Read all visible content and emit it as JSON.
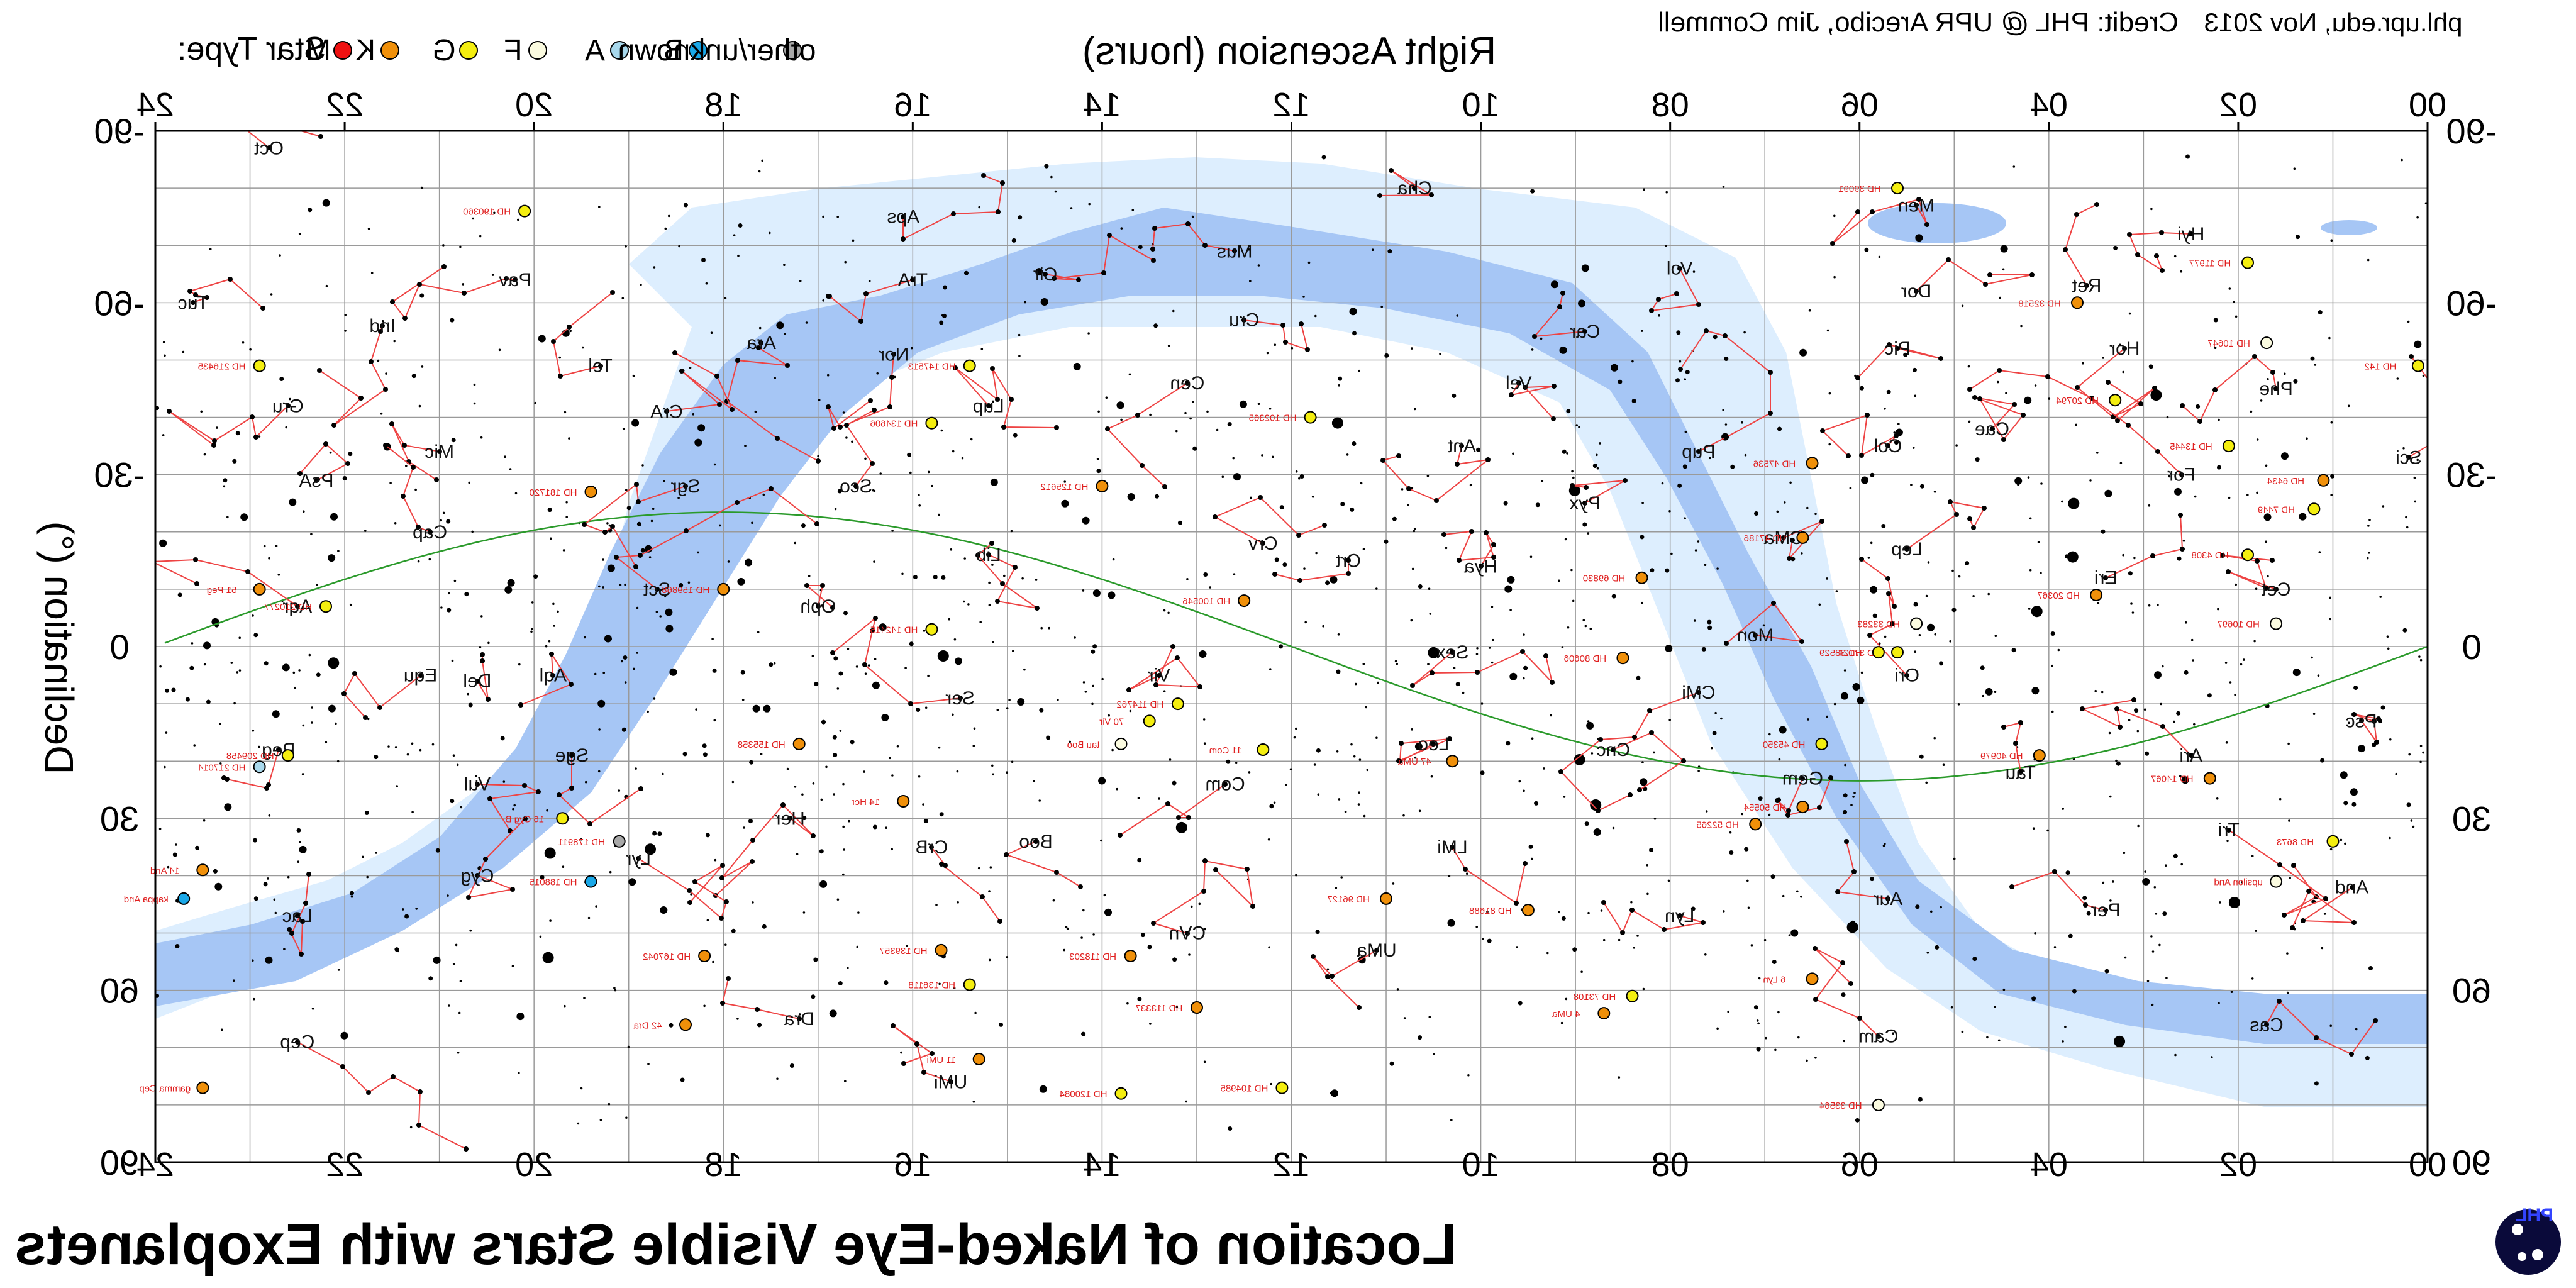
{
  "header": {
    "legend_title": "Star Type:",
    "legend": [
      {
        "label": "M",
        "color": "#ee1111"
      },
      {
        "label": "K",
        "color": "#f0900a"
      },
      {
        "label": "G",
        "color": "#f4ee10"
      },
      {
        "label": "F",
        "color": "#fbfbe0"
      },
      {
        "label": "A",
        "color": "#a8d8ec"
      },
      {
        "label": "B",
        "color": "#1aa8e8"
      },
      {
        "label": "other/unknown",
        "color": "#a8a8a8"
      }
    ],
    "credit": "Credit: PHL @ UPR Arecibo, Jim Cornmell",
    "site_date": "phl.upr.edu, Nov 2013"
  },
  "axes": {
    "top_label": "Right Ascension (hours)",
    "left_label": "Declination (°)",
    "ra_ticks": [
      "24",
      "22",
      "20",
      "18",
      "16",
      "14",
      "12",
      "10",
      "08",
      "06",
      "04",
      "02",
      "00"
    ],
    "dec_ticks": [
      "-90",
      "-60",
      "-30",
      "0",
      "30",
      "60",
      "90"
    ]
  },
  "footer": {
    "title": "Location of Naked-Eye Visible Stars with Exoplanets",
    "logo_text": "PHL"
  },
  "constellations": [
    {
      "name": "Oct",
      "ra": 22.8,
      "dec": -87
    },
    {
      "name": "Aps",
      "ra": 16.1,
      "dec": -75
    },
    {
      "name": "Cha",
      "ra": 10.7,
      "dec": -80
    },
    {
      "name": "Men",
      "ra": 5.4,
      "dec": -77
    },
    {
      "name": "Hyi",
      "ra": 2.5,
      "dec": -72
    },
    {
      "name": "Mus",
      "ra": 12.6,
      "dec": -69
    },
    {
      "name": "Cir",
      "ra": 14.6,
      "dec": -65
    },
    {
      "name": "TrA",
      "ra": 16.0,
      "dec": -64
    },
    {
      "name": "Vol",
      "ra": 7.9,
      "dec": -66
    },
    {
      "name": "Dor",
      "ra": 5.4,
      "dec": -62
    },
    {
      "name": "Ret",
      "ra": 3.6,
      "dec": -63
    },
    {
      "name": "Tuc",
      "ra": 23.6,
      "dec": -60
    },
    {
      "name": "Pav",
      "ra": 20.2,
      "dec": -64
    },
    {
      "name": "Ind",
      "ra": 21.6,
      "dec": -56
    },
    {
      "name": "Ara",
      "ra": 17.6,
      "dec": -53
    },
    {
      "name": "Nor",
      "ra": 16.2,
      "dec": -51
    },
    {
      "name": "Cru",
      "ra": 12.5,
      "dec": -57
    },
    {
      "name": "Car",
      "ra": 8.9,
      "dec": -55
    },
    {
      "name": "Pic",
      "ra": 5.6,
      "dec": -52
    },
    {
      "name": "Hor",
      "ra": 3.2,
      "dec": -52
    },
    {
      "name": "Tel",
      "ra": 19.3,
      "dec": -49
    },
    {
      "name": "Gru",
      "ra": 22.6,
      "dec": -42
    },
    {
      "name": "CrA",
      "ra": 18.6,
      "dec": -41
    },
    {
      "name": "Cen",
      "ra": 13.1,
      "dec": -46
    },
    {
      "name": "Vel",
      "ra": 9.6,
      "dec": -46
    },
    {
      "name": "Phe",
      "ra": 1.6,
      "dec": -45
    },
    {
      "name": "Lup",
      "ra": 15.2,
      "dec": -42
    },
    {
      "name": "Cae",
      "ra": 4.6,
      "dec": -38
    },
    {
      "name": "Mic",
      "ra": 21.0,
      "dec": -34
    },
    {
      "name": "Ant",
      "ra": 10.2,
      "dec": -35
    },
    {
      "name": "Pup",
      "ra": 7.7,
      "dec": -34
    },
    {
      "name": "Col",
      "ra": 5.7,
      "dec": -35
    },
    {
      "name": "Sci",
      "ra": 0.2,
      "dec": -33
    },
    {
      "name": "PsA",
      "ra": 22.3,
      "dec": -29
    },
    {
      "name": "Sgr",
      "ra": 18.4,
      "dec": -28
    },
    {
      "name": "Sco",
      "ra": 16.6,
      "dec": -28
    },
    {
      "name": "For",
      "ra": 2.6,
      "dec": -30
    },
    {
      "name": "Pyx",
      "ra": 8.9,
      "dec": -25
    },
    {
      "name": "Lep",
      "ra": 5.5,
      "dec": -17
    },
    {
      "name": "CMa",
      "ra": 6.8,
      "dec": -19
    },
    {
      "name": "Cap",
      "ra": 21.1,
      "dec": -20
    },
    {
      "name": "Crv",
      "ra": 12.3,
      "dec": -18
    },
    {
      "name": "Lib",
      "ra": 15.2,
      "dec": -16
    },
    {
      "name": "Eri",
      "ra": 3.4,
      "dec": -12
    },
    {
      "name": "Hya",
      "ra": 10.0,
      "dec": -14
    },
    {
      "name": "Crt",
      "ra": 11.4,
      "dec": -15
    },
    {
      "name": "Sct",
      "ra": 18.7,
      "dec": -10
    },
    {
      "name": "Cet",
      "ra": 1.6,
      "dec": -10
    },
    {
      "name": "Aqr",
      "ra": 22.5,
      "dec": -7
    },
    {
      "name": "Oph",
      "ra": 17.0,
      "dec": -7
    },
    {
      "name": "Mon",
      "ra": 7.1,
      "dec": -2
    },
    {
      "name": "Sex",
      "ra": 10.3,
      "dec": 1
    },
    {
      "name": "Psc",
      "ra": 0.7,
      "dec": 13
    },
    {
      "name": "Equ",
      "ra": 21.2,
      "dec": 5
    },
    {
      "name": "Del",
      "ra": 20.6,
      "dec": 6
    },
    {
      "name": "Aql",
      "ra": 19.8,
      "dec": 5
    },
    {
      "name": "Ser",
      "ra": 15.5,
      "dec": 9
    },
    {
      "name": "Vir",
      "ra": 13.4,
      "dec": 5
    },
    {
      "name": "Ori",
      "ra": 5.5,
      "dec": 5
    },
    {
      "name": "CMi",
      "ra": 7.7,
      "dec": 8
    },
    {
      "name": "Leo",
      "ra": 10.5,
      "dec": 17
    },
    {
      "name": "Cnc",
      "ra": 8.6,
      "dec": 18
    },
    {
      "name": "Peg",
      "ra": 22.7,
      "dec": 18
    },
    {
      "name": "Sge",
      "ra": 19.6,
      "dec": 19
    },
    {
      "name": "Ari",
      "ra": 2.5,
      "dec": 19
    },
    {
      "name": "Tau",
      "ra": 4.3,
      "dec": 22
    },
    {
      "name": "Com",
      "ra": 12.7,
      "dec": 24
    },
    {
      "name": "Gem",
      "ra": 6.6,
      "dec": 23
    },
    {
      "name": "Vul",
      "ra": 20.6,
      "dec": 24
    },
    {
      "name": "Her",
      "ra": 17.3,
      "dec": 30
    },
    {
      "name": "Tri",
      "ra": 2.1,
      "dec": 32
    },
    {
      "name": "CrB",
      "ra": 15.8,
      "dec": 35
    },
    {
      "name": "Boo",
      "ra": 14.7,
      "dec": 34
    },
    {
      "name": "LMi",
      "ra": 10.3,
      "dec": 35
    },
    {
      "name": "Lyr",
      "ra": 18.9,
      "dec": 37
    },
    {
      "name": "Cyg",
      "ra": 20.6,
      "dec": 40
    },
    {
      "name": "And",
      "ra": 0.8,
      "dec": 42
    },
    {
      "name": "Aur",
      "ra": 5.7,
      "dec": 44
    },
    {
      "name": "Lac",
      "ra": 22.5,
      "dec": 47
    },
    {
      "name": "Per",
      "ra": 3.4,
      "dec": 46
    },
    {
      "name": "Lyn",
      "ra": 7.9,
      "dec": 47
    },
    {
      "name": "CVn",
      "ra": 13.1,
      "dec": 50
    },
    {
      "name": "UMa",
      "ra": 11.1,
      "dec": 53
    },
    {
      "name": "Cas",
      "ra": 1.7,
      "dec": 66
    },
    {
      "name": "Dra",
      "ra": 17.2,
      "dec": 65
    },
    {
      "name": "Cep",
      "ra": 22.5,
      "dec": 69
    },
    {
      "name": "Cam",
      "ra": 5.8,
      "dec": 68
    },
    {
      "name": "UMi",
      "ra": 15.6,
      "dec": 76
    }
  ],
  "exoplanet_stars": [
    {
      "name": "HD 39091",
      "ra": 5.6,
      "dec": -80,
      "type": "G"
    },
    {
      "name": "HD 190360",
      "ra": 20.1,
      "dec": -76,
      "type": "G"
    },
    {
      "name": "HD 11977",
      "ra": 1.9,
      "dec": -67,
      "type": "G"
    },
    {
      "name": "HD 32518",
      "ra": 3.7,
      "dec": -60,
      "type": "K"
    },
    {
      "name": "HD 216435",
      "ra": 22.9,
      "dec": -49,
      "type": "G"
    },
    {
      "name": "HD 10647",
      "ra": 1.7,
      "dec": -53,
      "type": "F"
    },
    {
      "name": "HD 142",
      "ra": 0.1,
      "dec": -49,
      "type": "G"
    },
    {
      "name": "HD 20794",
      "ra": 3.3,
      "dec": -43,
      "type": "G"
    },
    {
      "name": "HD 147513",
      "ra": 15.4,
      "dec": -49,
      "type": "G"
    },
    {
      "name": "HD 102365",
      "ra": 11.8,
      "dec": -40,
      "type": "G"
    },
    {
      "name": "HD 134606",
      "ra": 15.8,
      "dec": -39,
      "type": "G"
    },
    {
      "name": "HD 47536",
      "ra": 6.5,
      "dec": -32,
      "type": "K"
    },
    {
      "name": "HD 125612",
      "ra": 14.0,
      "dec": -28,
      "type": "K"
    },
    {
      "name": "HD 181720",
      "ra": 19.4,
      "dec": -27,
      "type": "K"
    },
    {
      "name": "HD 13445",
      "ra": 2.1,
      "dec": -35,
      "type": "G"
    },
    {
      "name": "HD 7449",
      "ra": 1.2,
      "dec": -24,
      "type": "G"
    },
    {
      "name": "HD 47186",
      "ra": 6.6,
      "dec": -19,
      "type": "K"
    },
    {
      "name": "HD 69830",
      "ra": 8.3,
      "dec": -12,
      "type": "K"
    },
    {
      "name": "HD 100546",
      "ra": 12.5,
      "dec": -8,
      "type": "K"
    },
    {
      "name": "HD 4308",
      "ra": 1.9,
      "dec": -16,
      "type": "G"
    },
    {
      "name": "51 Peg",
      "ra": 22.9,
      "dec": -10,
      "type": "K"
    },
    {
      "name": "HD 210277",
      "ra": 22.2,
      "dec": -7,
      "type": "G"
    },
    {
      "name": "HD 33283",
      "ra": 5.4,
      "dec": -4,
      "type": "F"
    },
    {
      "name": "HD 20367",
      "ra": 3.5,
      "dec": -9,
      "type": "K"
    },
    {
      "name": "HD 10697",
      "ra": 1.6,
      "dec": -4,
      "type": "F"
    },
    {
      "name": "HD 159868",
      "ra": 18.0,
      "dec": -10,
      "type": "K"
    },
    {
      "name": "HD 142415",
      "ra": 15.8,
      "dec": -3,
      "type": "G"
    },
    {
      "name": "HD 80606",
      "ra": 8.5,
      "dec": 2,
      "type": "K"
    },
    {
      "name": "HD 37124",
      "ra": 5.6,
      "dec": 1,
      "type": "G"
    },
    {
      "name": "70 Vir",
      "ra": 13.5,
      "dec": 13,
      "type": "G"
    },
    {
      "name": "HD 114762",
      "ra": 13.2,
      "dec": 10,
      "type": "G"
    },
    {
      "name": "11 Com",
      "ra": 12.3,
      "dec": 18,
      "type": "G"
    },
    {
      "name": "tau Boo",
      "ra": 13.8,
      "dec": 17,
      "type": "F"
    },
    {
      "name": "14 Her",
      "ra": 16.1,
      "dec": 27,
      "type": "K"
    },
    {
      "name": "HD 155358",
      "ra": 17.2,
      "dec": 17,
      "type": "K"
    },
    {
      "name": "47 UMa",
      "ra": 10.3,
      "dec": 20,
      "type": "K"
    },
    {
      "name": "HD 45350",
      "ra": 6.4,
      "dec": 17,
      "type": "G"
    },
    {
      "name": "upsilon And",
      "ra": 1.6,
      "dec": 41,
      "type": "F"
    },
    {
      "name": "HD 40979",
      "ra": 4.1,
      "dec": 19,
      "type": "K"
    },
    {
      "name": "HD 50554",
      "ra": 6.6,
      "dec": 28,
      "type": "K"
    },
    {
      "name": "HD 52265",
      "ra": 7.1,
      "dec": 31,
      "type": "K"
    },
    {
      "name": "HD 8673",
      "ra": 1.0,
      "dec": 34,
      "type": "G"
    },
    {
      "name": "16 Cyg B",
      "ra": 19.7,
      "dec": 30,
      "type": "G"
    },
    {
      "name": "HD 209458",
      "ra": 22.6,
      "dec": 19,
      "type": "G"
    },
    {
      "name": "HD 217014",
      "ra": 22.9,
      "dec": 21,
      "type": "A"
    },
    {
      "name": "gamma Cep",
      "ra": 23.5,
      "dec": 77,
      "type": "K"
    },
    {
      "name": "HD 178911",
      "ra": 19.1,
      "dec": 34,
      "type": "other"
    },
    {
      "name": "HD 188015",
      "ra": 19.4,
      "dec": 41,
      "type": "B"
    },
    {
      "name": "14 And",
      "ra": 23.5,
      "dec": 39,
      "type": "K"
    },
    {
      "name": "kappa And",
      "ra": 23.7,
      "dec": 44,
      "type": "B"
    },
    {
      "name": "HD 167042",
      "ra": 18.2,
      "dec": 54,
      "type": "K"
    },
    {
      "name": "42 Dra",
      "ra": 18.4,
      "dec": 66,
      "type": "K"
    },
    {
      "name": "HD 139357",
      "ra": 15.7,
      "dec": 53,
      "type": "K"
    },
    {
      "name": "HD 136118",
      "ra": 15.4,
      "dec": 59,
      "type": "G"
    },
    {
      "name": "11 UMi",
      "ra": 15.3,
      "dec": 72,
      "type": "K"
    },
    {
      "name": "HD 118203",
      "ra": 13.7,
      "dec": 54,
      "type": "K"
    },
    {
      "name": "HD 120084",
      "ra": 13.8,
      "dec": 78,
      "type": "G"
    },
    {
      "name": "HD 104985",
      "ra": 12.1,
      "dec": 77,
      "type": "G"
    },
    {
      "name": "HD 113337",
      "ra": 13.0,
      "dec": 63,
      "type": "K"
    },
    {
      "name": "HD 96127",
      "ra": 11.0,
      "dec": 44,
      "type": "K"
    },
    {
      "name": "HD 81688",
      "ra": 9.5,
      "dec": 46,
      "type": "K"
    },
    {
      "name": "HD 38529",
      "ra": 5.8,
      "dec": 1,
      "type": "G"
    },
    {
      "name": "HD 33564",
      "ra": 5.8,
      "dec": 80,
      "type": "F"
    },
    {
      "name": "4 UMa",
      "ra": 8.7,
      "dec": 64,
      "type": "K"
    },
    {
      "name": "HD 73108",
      "ra": 8.4,
      "dec": 61,
      "type": "G"
    },
    {
      "name": "6 Lyn",
      "ra": 6.5,
      "dec": 58,
      "type": "K"
    },
    {
      "name": "HD 14067",
      "ra": 2.3,
      "dec": 23,
      "type": "K"
    },
    {
      "name": "HD 6434",
      "ra": 1.1,
      "dec": -29,
      "type": "K"
    }
  ]
}
